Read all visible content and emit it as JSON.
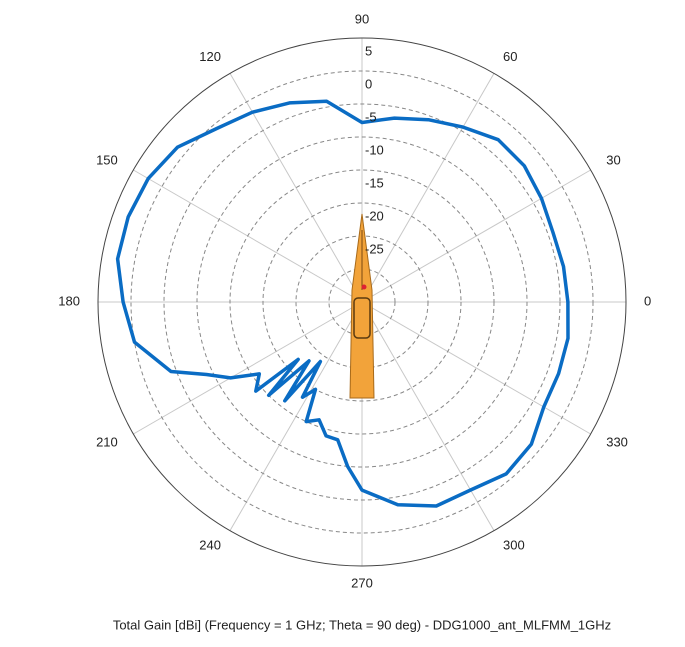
{
  "chart_data": {
    "type": "polar",
    "title": "Total Gain [dBi] (Frequency = 1 GHz; Theta = 90 deg) - DDG1000_ant_MLFMM_1GHz",
    "rlim": [
      -35,
      5
    ],
    "rticks": [
      5,
      0,
      -5,
      -10,
      -15,
      -20,
      -25
    ],
    "extra_circles": [
      -30
    ],
    "thetaticks": [
      0,
      30,
      60,
      90,
      120,
      150,
      180,
      210,
      240,
      270,
      300,
      330
    ],
    "grid": true,
    "series": [
      {
        "color": "#0a6cc4",
        "x": [
          0,
          10,
          20,
          30,
          40,
          50,
          60,
          70,
          80,
          90,
          100,
          110,
          120,
          130,
          140,
          150,
          160,
          170,
          180,
          190,
          200,
          205,
          210,
          215,
          220,
          222,
          225,
          228,
          232,
          235,
          238,
          242,
          245,
          250,
          255,
          260,
          265,
          270,
          280,
          290,
          300,
          310,
          320,
          330,
          340,
          350
        ],
        "values": [
          -3.8,
          -4,
          -4.2,
          -3.6,
          -2.9,
          -2.9,
          -4.4,
          -5.6,
          -6.7,
          -7.8,
          -4.1,
          -2.9,
          -1.8,
          -0.7,
          1.5,
          2.4,
          2.7,
          2.6,
          1.2,
          0,
          -4.2,
          -9,
          -12,
          -16,
          -14,
          -22,
          -15,
          -23,
          -16,
          -24,
          -18,
          -20,
          -15,
          -16,
          -14,
          -13.8,
          -10,
          -6.5,
          -3.8,
          -2.1,
          -2.1,
          -1,
          -1.5,
          -3.2,
          -3.3,
          -3.3
        ]
      }
    ]
  }
}
